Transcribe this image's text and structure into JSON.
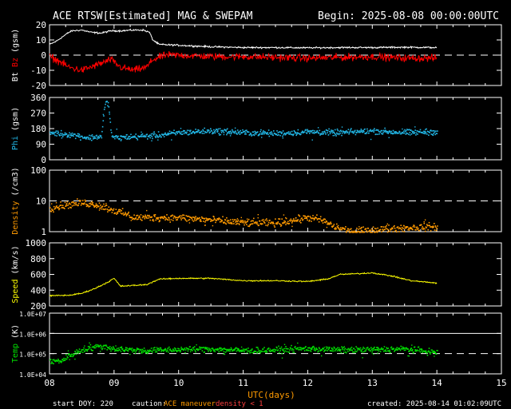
{
  "title": "ACE RTSW[Estimated] MAG & SWEPAM",
  "begin_label": "Begin: 2025-08-08 00:00:00UTC",
  "footer": {
    "start_doy": "start DOY: 220",
    "caution_label": "caution:",
    "caution_maneuver": "ACE maneuver",
    "caution_density": "density < 1",
    "created": "created: 2025-08-14 01:02:09UTC"
  },
  "colors": {
    "background": "#000000",
    "frame": "#ffffff",
    "bt": "#ffffff",
    "bz": "#ff0000",
    "phi": "#22b8e8",
    "density": "#ff9a00",
    "speed": "#ffff00",
    "temp": "#00e000",
    "caution_orange": "#ff9a00",
    "caution_red": "#ff4040"
  },
  "chart_data": [
    {
      "type": "line",
      "title": "",
      "xlabel": "UTC(days)",
      "ylabel": "Bt Bz (gsm)",
      "ylabel_parts": [
        "Bt",
        "Bz",
        "(gsm)"
      ],
      "xlim": [
        8,
        14
      ],
      "x_ticks": [
        "08",
        "09",
        "10",
        "11",
        "12",
        "13",
        "14",
        "15"
      ],
      "ylim": [
        -20,
        20
      ],
      "y_ticks": [
        "20",
        "10",
        "0",
        "-10",
        "-20"
      ],
      "reference_lines": [
        0
      ],
      "series": [
        {
          "name": "Bt",
          "color": "#ffffff",
          "noise": 0.8,
          "x": [
            8.0,
            8.1,
            8.2,
            8.3,
            8.35,
            8.5,
            8.65,
            8.8,
            8.95,
            9.1,
            9.3,
            9.45,
            9.55,
            9.6,
            9.7,
            10.0,
            10.5,
            11.0,
            11.5,
            12.0,
            12.5,
            13.0,
            13.5,
            14.0
          ],
          "values": [
            7,
            9,
            12,
            15,
            16,
            16.5,
            15,
            14.5,
            16,
            16,
            16.5,
            16.5,
            15,
            10,
            7,
            6.5,
            5.5,
            5,
            5,
            4.8,
            5,
            5,
            5.2,
            5
          ]
        },
        {
          "name": "Bz",
          "color": "#ff0000",
          "noise": 3.5,
          "x": [
            8.0,
            8.15,
            8.3,
            8.5,
            8.7,
            8.95,
            9.1,
            9.3,
            9.5,
            9.6,
            9.8,
            10.0,
            10.5,
            11.0,
            11.5,
            12.0,
            12.5,
            13.0,
            13.5,
            14.0
          ],
          "values": [
            -1,
            -4,
            -8,
            -10,
            -7,
            -3,
            -8,
            -10,
            -8,
            -3,
            0,
            0,
            -1,
            -1,
            -1.5,
            -2,
            -1.5,
            -1,
            -2,
            -2
          ]
        }
      ]
    },
    {
      "type": "scatter",
      "title": "",
      "ylabel": "Phi (gsm)",
      "xlim": [
        8,
        14
      ],
      "ylim": [
        0,
        360
      ],
      "y_ticks": [
        "360",
        "270",
        "180",
        "90",
        "0"
      ],
      "series": [
        {
          "name": "Phi",
          "color": "#22b8e8",
          "noise": 25,
          "x": [
            8.0,
            8.3,
            8.6,
            8.8,
            8.85,
            8.9,
            8.95,
            9.0,
            9.5,
            9.8,
            10.0,
            10.5,
            11.0,
            11.5,
            12.0,
            12.5,
            13.0,
            13.5,
            14.0
          ],
          "values": [
            160,
            150,
            130,
            140,
            320,
            340,
            150,
            130,
            140,
            150,
            160,
            170,
            160,
            155,
            165,
            160,
            170,
            160,
            165
          ]
        }
      ]
    },
    {
      "type": "scatter",
      "title": "",
      "ylabel": "Density (/cm3)",
      "xlim": [
        8,
        14
      ],
      "ylim": [
        1,
        100
      ],
      "scale": "log",
      "y_ticks": [
        "100",
        "10",
        "1"
      ],
      "reference_lines": [
        10
      ],
      "series": [
        {
          "name": "Density",
          "color": "#ff9a00",
          "noise_factor": 1.4,
          "x": [
            8.0,
            8.3,
            8.5,
            8.7,
            9.0,
            9.3,
            9.5,
            10.0,
            10.5,
            11.0,
            11.5,
            11.8,
            12.0,
            12.2,
            12.4,
            12.7,
            13.0,
            13.5,
            14.0
          ],
          "values": [
            6,
            8,
            9,
            8,
            5,
            3,
            3,
            3,
            2.5,
            2,
            2,
            2.5,
            3,
            2.5,
            1.5,
            1,
            1.2,
            1.4,
            1.5
          ]
        }
      ]
    },
    {
      "type": "line",
      "title": "",
      "ylabel": "Speed (km/s)",
      "xlim": [
        8,
        14
      ],
      "ylim": [
        200,
        1000
      ],
      "y_ticks": [
        "1000",
        "800",
        "600",
        "400",
        "200"
      ],
      "series": [
        {
          "name": "Speed",
          "color": "#ffff00",
          "noise": 12,
          "x": [
            8.0,
            8.3,
            8.5,
            8.7,
            8.9,
            9.0,
            9.1,
            9.3,
            9.5,
            9.7,
            10.0,
            10.5,
            11.0,
            11.5,
            12.0,
            12.3,
            12.5,
            12.8,
            13.0,
            13.3,
            13.6,
            14.0
          ],
          "values": [
            330,
            335,
            360,
            420,
            500,
            550,
            450,
            460,
            470,
            540,
            550,
            550,
            520,
            520,
            510,
            540,
            600,
            610,
            620,
            580,
            520,
            490
          ]
        }
      ]
    },
    {
      "type": "scatter",
      "title": "",
      "ylabel": "Temp (K)",
      "xlim": [
        8,
        14
      ],
      "ylim": [
        10000,
        10000000
      ],
      "scale": "log",
      "y_ticks": [
        "1.0E+07",
        "1.0E+06",
        "1.0E+05",
        "1.0E+04"
      ],
      "reference_lines": [
        1000000,
        100000
      ],
      "series": [
        {
          "name": "Temp",
          "color": "#00e000",
          "noise_factor": 1.5,
          "x": [
            8.0,
            8.2,
            8.4,
            8.6,
            8.8,
            9.0,
            9.5,
            10.0,
            10.5,
            11.0,
            11.5,
            12.0,
            12.5,
            13.0,
            13.5,
            14.0
          ],
          "values": [
            40000,
            50000,
            120000,
            200000,
            250000,
            180000,
            150000,
            170000,
            180000,
            150000,
            160000,
            190000,
            160000,
            170000,
            180000,
            120000
          ]
        }
      ]
    }
  ]
}
